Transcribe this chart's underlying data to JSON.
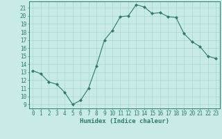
{
  "x": [
    0,
    1,
    2,
    3,
    4,
    5,
    6,
    7,
    8,
    9,
    10,
    11,
    12,
    13,
    14,
    15,
    16,
    17,
    18,
    19,
    20,
    21,
    22,
    23
  ],
  "y": [
    13.2,
    12.8,
    11.8,
    11.5,
    10.5,
    9.0,
    9.5,
    11.0,
    13.8,
    17.0,
    18.2,
    19.9,
    20.0,
    21.4,
    21.1,
    20.3,
    20.4,
    19.9,
    19.8,
    17.8,
    16.8,
    16.2,
    15.0,
    14.7
  ],
  "line_color": "#2d7a6a",
  "marker": "D",
  "marker_size": 2.2,
  "bg_color": "#c8ebe8",
  "grid_color": "#a8d8d0",
  "xlabel": "Humidex (Indice chaleur)",
  "ylabel_ticks": [
    9,
    10,
    11,
    12,
    13,
    14,
    15,
    16,
    17,
    18,
    19,
    20,
    21
  ],
  "ylim": [
    8.5,
    21.8
  ],
  "xlim": [
    -0.5,
    23.5
  ],
  "tick_color": "#2d7a6a",
  "label_fontsize": 5.5,
  "axis_label_fontsize": 6.5
}
